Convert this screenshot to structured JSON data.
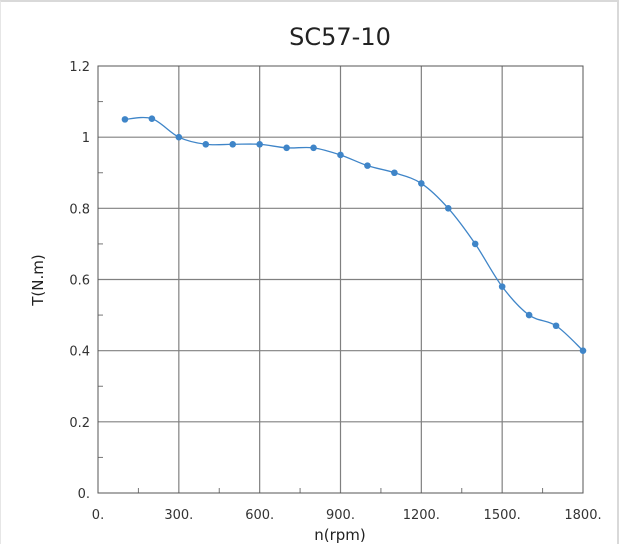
{
  "chart_data": {
    "type": "line",
    "title": "SC57-10",
    "xlabel": "n(rpm)",
    "ylabel": "T(N.m)",
    "xlim": [
      0,
      1800
    ],
    "ylim": [
      0,
      1.2
    ],
    "x_tick_labels": [
      "0.",
      "300.",
      "600.",
      "900.",
      "1200.",
      "1500.",
      "1800."
    ],
    "y_tick_labels": [
      "0.",
      "0.2",
      "0.4",
      "0.6",
      "0.8",
      "1",
      "1.2"
    ],
    "grid": true,
    "series": [
      {
        "color": "#3f85c8",
        "points": [
          [
            100,
            1.05
          ],
          [
            200,
            1.052
          ],
          [
            300,
            1.0
          ],
          [
            400,
            0.98
          ],
          [
            500,
            0.98
          ],
          [
            600,
            0.98
          ],
          [
            700,
            0.97
          ],
          [
            800,
            0.97
          ],
          [
            900,
            0.95
          ],
          [
            1000,
            0.92
          ],
          [
            1100,
            0.9
          ],
          [
            1200,
            0.87
          ],
          [
            1300,
            0.8
          ],
          [
            1400,
            0.7
          ],
          [
            1500,
            0.58
          ],
          [
            1600,
            0.5
          ],
          [
            1700,
            0.47
          ],
          [
            1800,
            0.4
          ]
        ]
      }
    ]
  }
}
